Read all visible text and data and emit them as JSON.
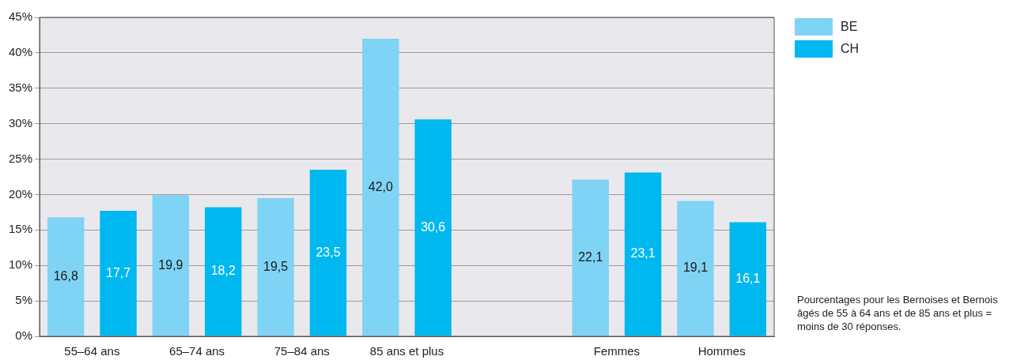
{
  "chart_data": {
    "type": "bar",
    "categories": [
      "55–64 ans",
      "65–74 ans",
      "75–84 ans",
      "85 ans et plus",
      null,
      "Femmes",
      "Hommes"
    ],
    "series": [
      {
        "name": "BE",
        "color": "#7fd3f5",
        "values": [
          16.8,
          19.9,
          19.5,
          42.0,
          null,
          22.1,
          19.1
        ],
        "value_labels": [
          "16,8",
          "19,9",
          "19,5",
          "42,0",
          null,
          "22,1",
          "19,1"
        ]
      },
      {
        "name": "CH",
        "color": "#00b8f0",
        "values": [
          17.7,
          18.2,
          23.5,
          30.6,
          null,
          23.1,
          16.1
        ],
        "value_labels": [
          "17,7",
          "18,2",
          "23,5",
          "30,6",
          null,
          "23,1",
          "16,1"
        ]
      }
    ],
    "ylim": [
      0,
      45
    ],
    "yticks": [
      {
        "value": 0,
        "label": "0%"
      },
      {
        "value": 5,
        "label": "5%"
      },
      {
        "value": 10,
        "label": "10%"
      },
      {
        "value": 15,
        "label": "15%"
      },
      {
        "value": 20,
        "label": "20%"
      },
      {
        "value": 25,
        "label": "25%"
      },
      {
        "value": 30,
        "label": "30%"
      },
      {
        "value": 35,
        "label": "35%"
      },
      {
        "value": 40,
        "label": "40%"
      },
      {
        "value": 45,
        "label": "45%"
      }
    ],
    "grid": "y",
    "legend": "top right",
    "annotations": [
      "Pourcentages pour les Bernoises et Bernois âgés de 55 à 64 ans et de 85 ans et plus = moins de 30 réponses."
    ]
  }
}
